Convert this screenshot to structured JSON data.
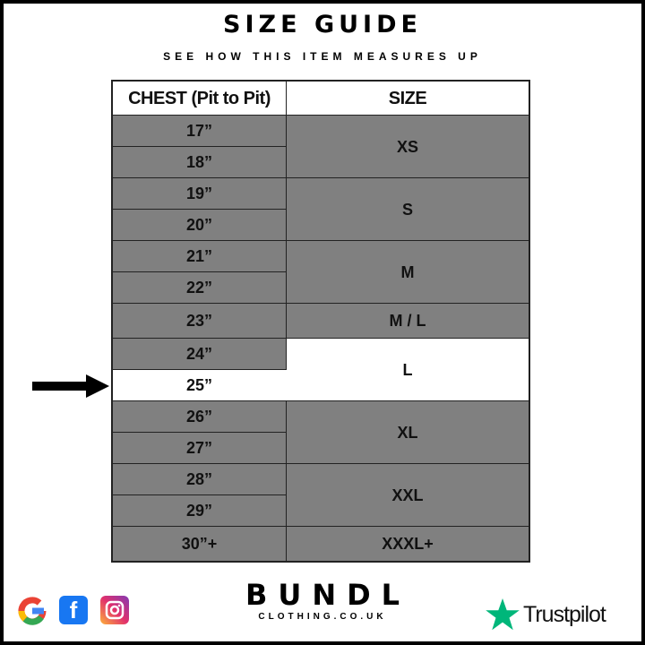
{
  "title": "SIZE GUIDE",
  "subtitle": "SEE HOW THIS ITEM MEASURES UP",
  "table": {
    "headers": [
      "CHEST (Pit to Pit)",
      "SIZE"
    ],
    "chest": [
      "17”",
      "18”",
      "19”",
      "20”",
      "21”",
      "22”",
      "23”",
      "24”",
      "25”",
      "26”",
      "27”",
      "28”",
      "29”",
      "30”+"
    ],
    "sizes": [
      "XS",
      "S",
      "M",
      "M / L",
      "L",
      "XL",
      "XXL",
      "XXXL+"
    ],
    "highlighted_chest": "25”",
    "highlighted_size": "L"
  },
  "colors": {
    "cell": "#808080",
    "highlight": "#ffffff",
    "trustpilot": "#00b67a"
  },
  "footer": {
    "brand": "BUNDL",
    "brand_sub": "CLOTHING.CO.UK",
    "trustpilot": "Trustpilot",
    "social_icons": [
      "google-icon",
      "facebook-icon",
      "instagram-icon"
    ]
  }
}
